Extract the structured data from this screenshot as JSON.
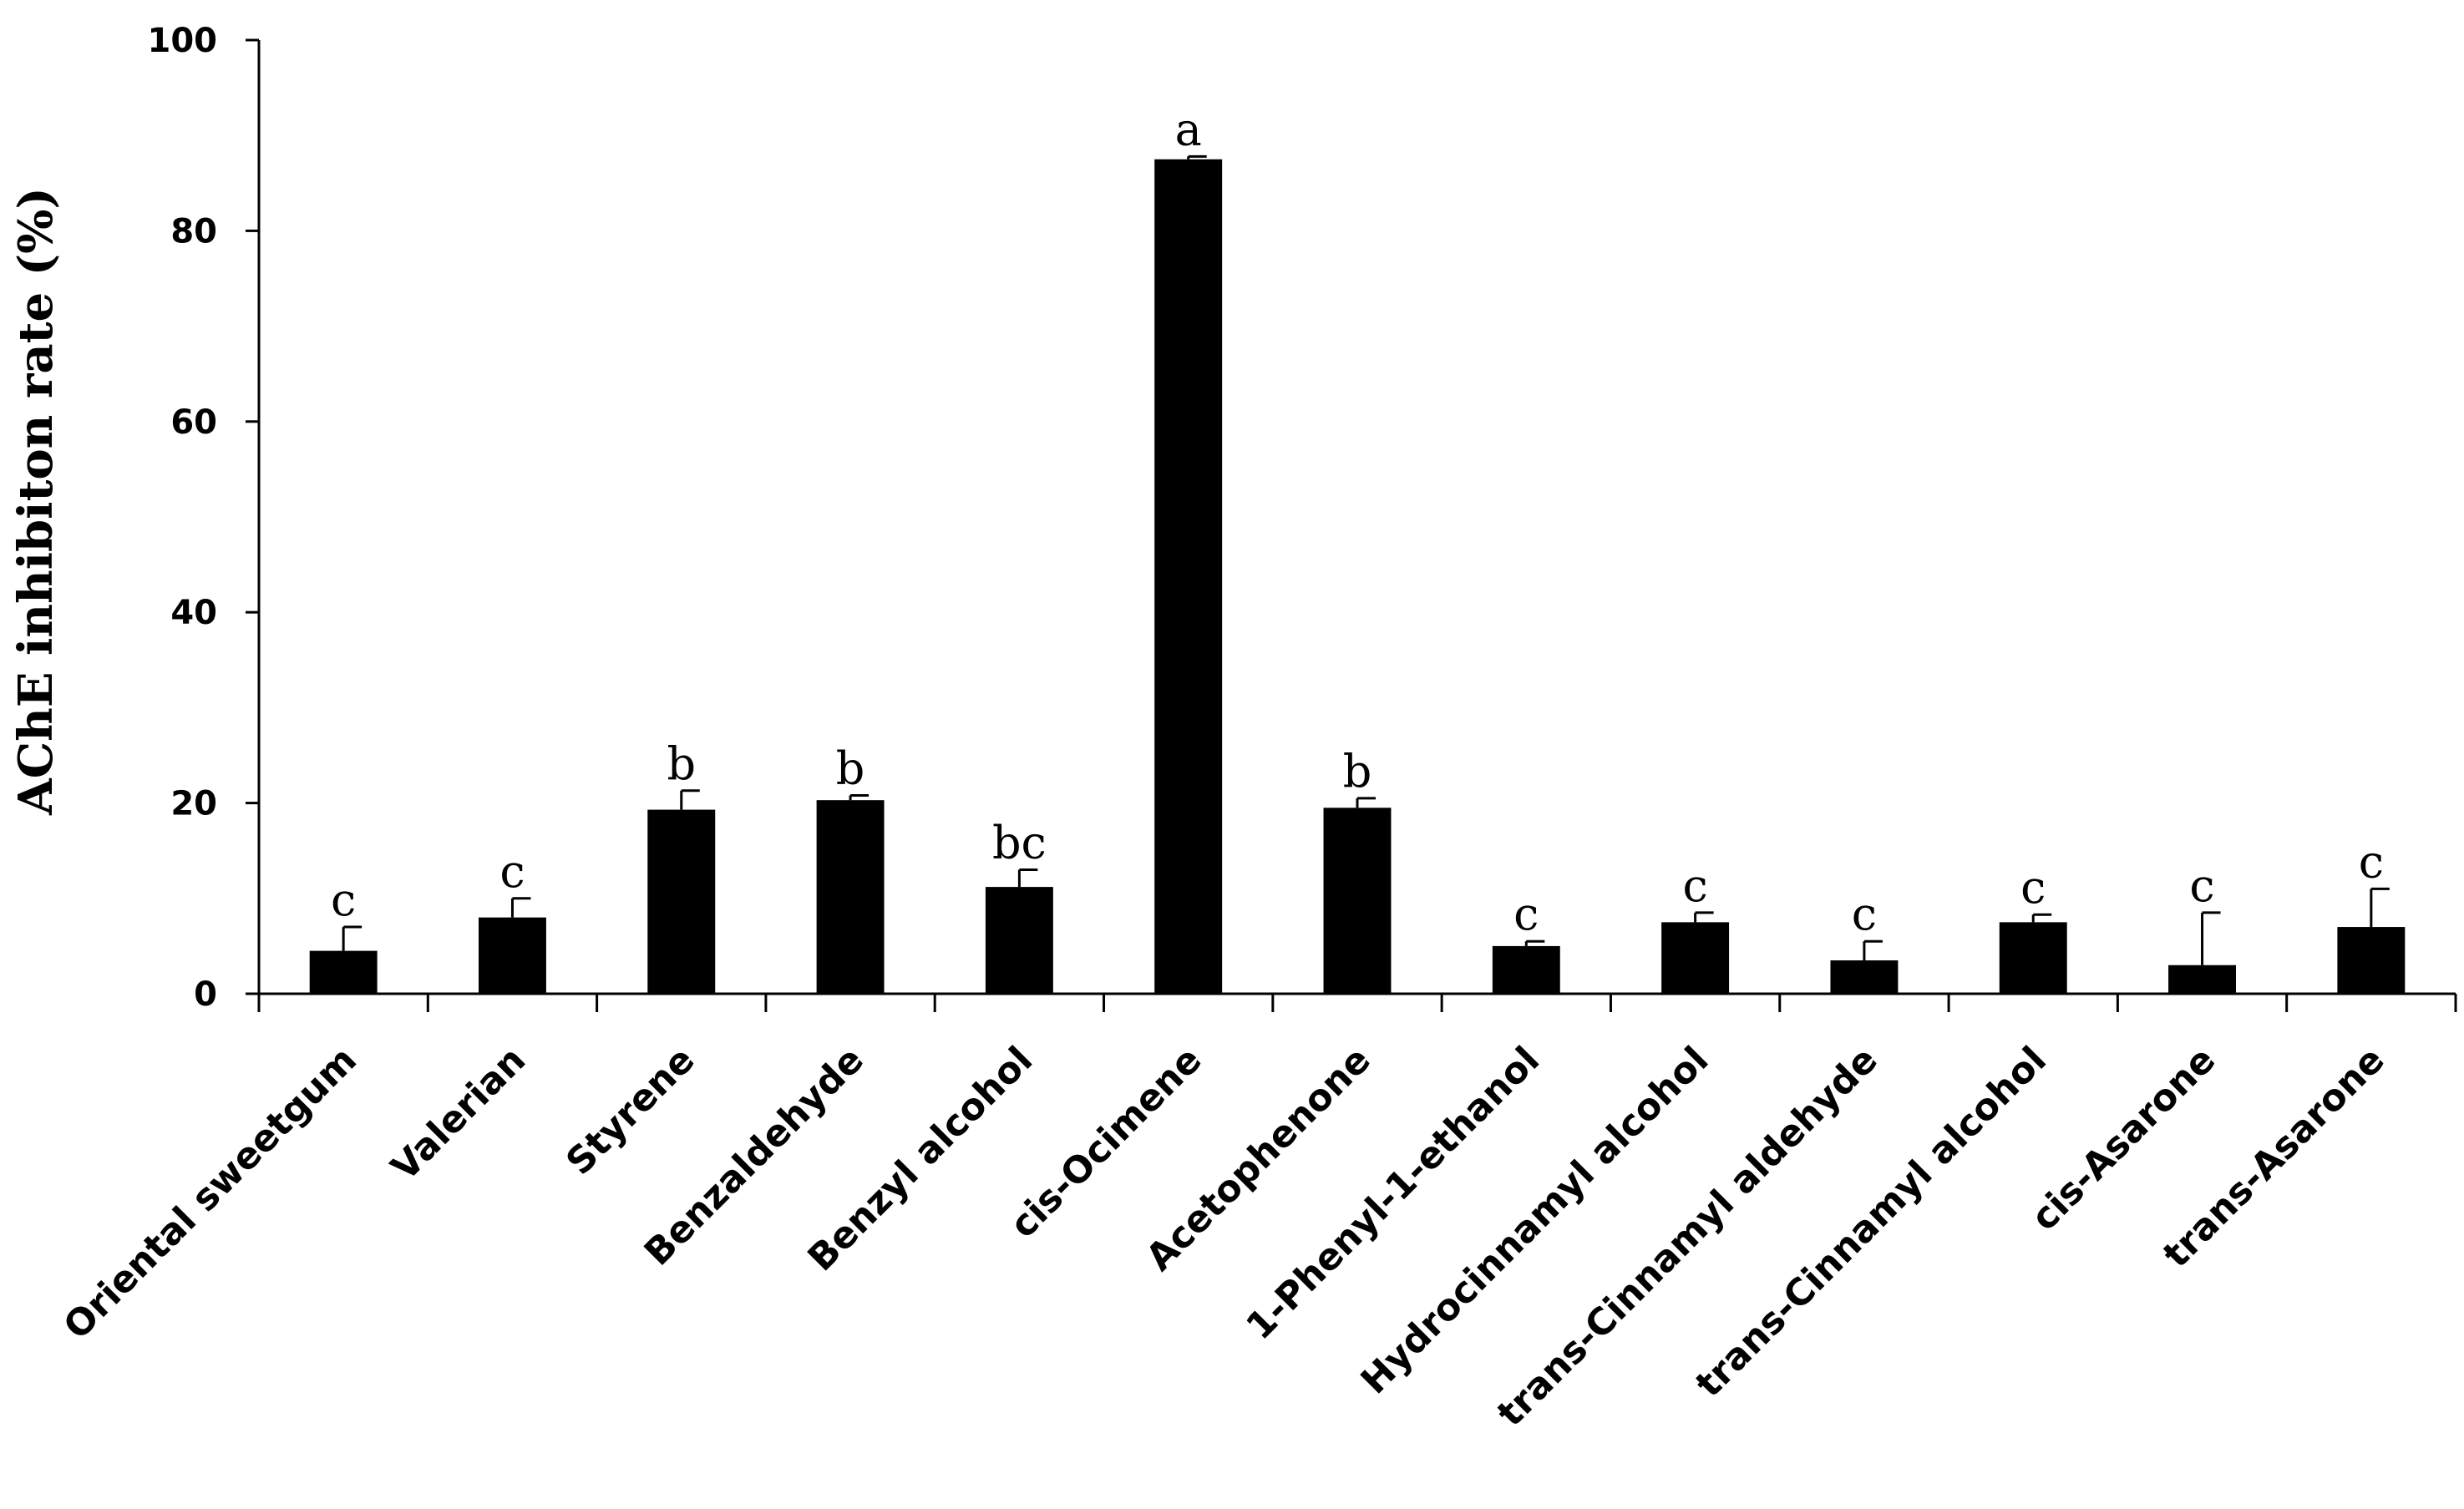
{
  "chart_data": {
    "type": "bar",
    "ylabel": "AChE inhibiton rate (%)",
    "xlabel": "",
    "ylim": [
      0,
      100
    ],
    "yticks": [
      "0",
      "20",
      "40",
      "60",
      "80",
      "100"
    ],
    "categories": [
      "Oriental sweetgum",
      "Valerian",
      "Styrene",
      "Benzaldehyde",
      "Benzyl alcohol",
      "cis-Ocimene",
      "Acetophenone",
      "1-Phenyl-1-ethanol",
      "Hydrocinnamyl alcohol",
      "trans-Cinnamyl aldehyde",
      "trans-Cinnamyl alcohol",
      "cis-Asarone",
      "trans-Asarone"
    ],
    "values": [
      4.5,
      8.0,
      19.3,
      20.3,
      11.2,
      87.5,
      19.5,
      5.0,
      7.5,
      3.5,
      7.5,
      3.0,
      7.0
    ],
    "errors": [
      2.5,
      2.0,
      2.0,
      0.5,
      1.8,
      0.3,
      1.0,
      0.5,
      1.0,
      2.0,
      0.8,
      5.5,
      4.0
    ],
    "significance": [
      "c",
      "c",
      "b",
      "b",
      "bc",
      "a",
      "b",
      "c",
      "c",
      "c",
      "c",
      "c",
      "c"
    ],
    "bar_color": "#000000",
    "grid": false,
    "legend": "none"
  }
}
